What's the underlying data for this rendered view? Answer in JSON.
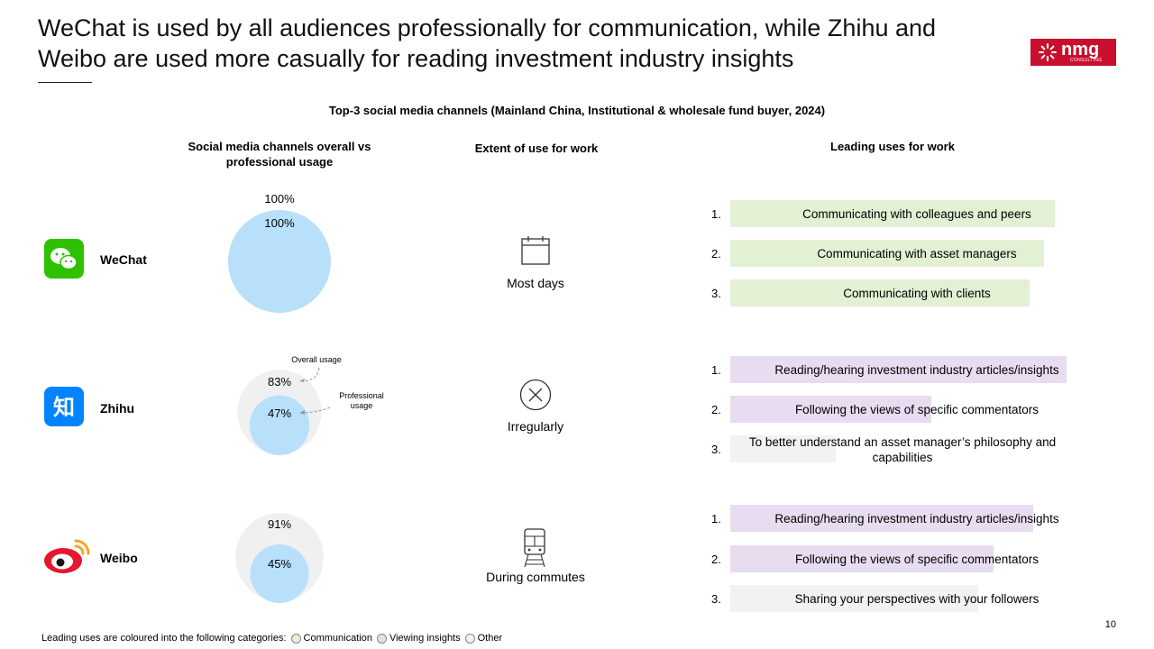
{
  "title": "WeChat is used by all audiences professionally for communication, while Zhihu and Weibo are used more casually for reading investment industry insights",
  "logo": {
    "text": "nmg",
    "subtext": "CONSULTING"
  },
  "subtitle": "Top-3 social media channels (Mainland China, Institutional & wholesale fund buyer, 2024)",
  "columns": {
    "usage": "Social media channels overall vs professional usage",
    "extent": "Extent of use for work",
    "uses": "Leading uses for work"
  },
  "annotations": {
    "overall": "Overall usage",
    "professional": "Professional usage"
  },
  "colors": {
    "communication": "#e2f0d4",
    "viewing": "#e8dcf1",
    "other": "#f2f2f2",
    "overall_circle": "#f0f0f0",
    "professional_circle": "#b8e0fb"
  },
  "channels": [
    {
      "name": "WeChat",
      "icon": "wechat-icon",
      "overall": 100,
      "overall_label": "100%",
      "professional": 100,
      "professional_label": "100%",
      "extent": "Most days",
      "extent_icon": "calendar-icon",
      "uses": [
        {
          "num": "1.",
          "text": "Communicating with colleagues and peers",
          "category": "communication",
          "share": 0.89
        },
        {
          "num": "2.",
          "text": "Communicating with asset managers",
          "category": "communication",
          "share": 0.86
        },
        {
          "num": "3.",
          "text": "Communicating with clients",
          "category": "communication",
          "share": 0.82
        }
      ]
    },
    {
      "name": "Zhihu",
      "icon": "zhihu-icon",
      "overall": 83,
      "overall_label": "83%",
      "professional": 47,
      "professional_label": "47%",
      "extent": "Irregularly",
      "extent_icon": "cross-circle-icon",
      "uses": [
        {
          "num": "1.",
          "text": "Reading/hearing investment industry articles/insights",
          "category": "viewing",
          "share": 0.92
        },
        {
          "num": "2.",
          "text": "Following the views of specific commentators",
          "category": "viewing",
          "share": 0.55
        },
        {
          "num": "3.",
          "text": "To better understand an asset manager’s philosophy and capabilities",
          "category": "other",
          "share": 0.29
        }
      ]
    },
    {
      "name": "Weibo",
      "icon": "weibo-icon",
      "overall": 91,
      "overall_label": "91%",
      "professional": 45,
      "professional_label": "45%",
      "extent": "During commutes",
      "extent_icon": "train-icon",
      "uses": [
        {
          "num": "1.",
          "text": "Reading/hearing investment industry articles/insights",
          "category": "viewing",
          "share": 0.83
        },
        {
          "num": "2.",
          "text": "Following the views of specific commentators",
          "category": "viewing",
          "share": 0.72
        },
        {
          "num": "3.",
          "text": "Sharing your perspectives with your followers",
          "category": "other",
          "share": 0.68
        }
      ]
    }
  ],
  "legend": {
    "intro": "Leading uses are coloured into the following categories:",
    "items": [
      {
        "label": "Communication",
        "color": "#e2f0d4"
      },
      {
        "label": "Viewing insights",
        "color": "#e8dcf1"
      },
      {
        "label": "Other",
        "color": "#f2f2f2"
      }
    ]
  },
  "page_number": "10"
}
